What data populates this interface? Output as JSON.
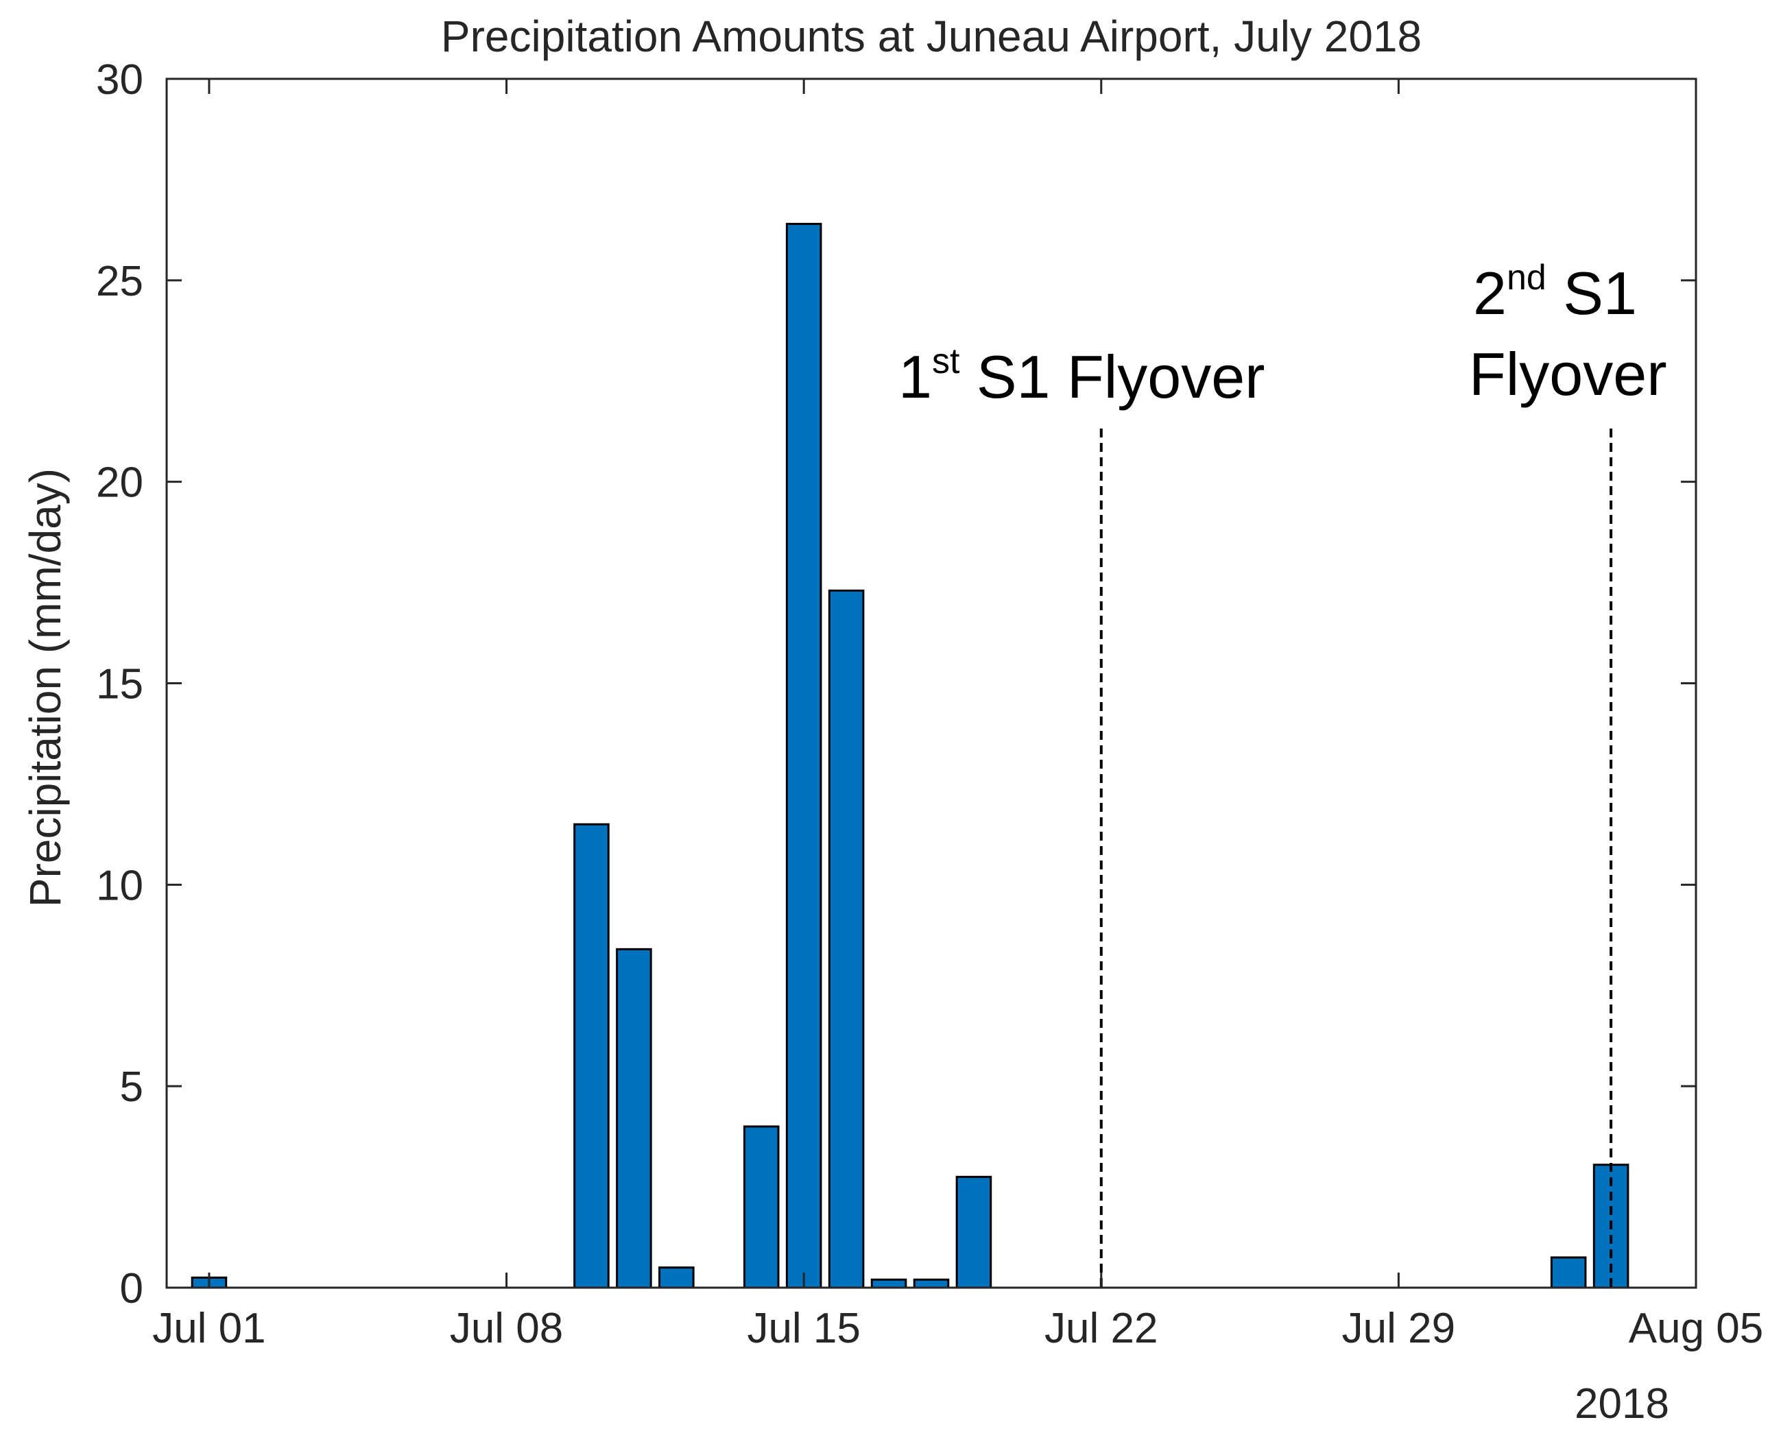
{
  "chart_data": {
    "type": "bar",
    "title": "Precipitation Amounts at Juneau Airport, July 2018",
    "xlabel": "",
    "ylabel": "Precipitation (mm/day)",
    "ylim": [
      0,
      30
    ],
    "yticks": [
      0,
      5,
      10,
      15,
      20,
      25,
      30
    ],
    "xlim": [
      "2018-06-30",
      "2018-08-05"
    ],
    "xticks": [
      "Jul 01",
      "Jul 08",
      "Jul 15",
      "Jul 22",
      "Jul 29",
      "Aug 05"
    ],
    "x_year_label": "2018",
    "grid": false,
    "bar_color": "#0072BD",
    "categories": [
      "2018-07-01",
      "2018-07-10",
      "2018-07-11",
      "2018-07-12",
      "2018-07-14",
      "2018-07-15",
      "2018-07-16",
      "2018-07-17",
      "2018-07-18",
      "2018-07-19",
      "2018-08-02",
      "2018-08-03"
    ],
    "values": [
      0.25,
      11.5,
      8.4,
      0.5,
      4.0,
      26.4,
      17.3,
      0.2,
      0.2,
      2.75,
      0.75,
      3.05
    ],
    "annotations": [
      {
        "date": "2018-07-22",
        "line": "dashed",
        "main": "1",
        "sup": "st",
        "rest": " S1 Flyover"
      },
      {
        "date": "2018-08-03",
        "line": "dashed",
        "main": "2",
        "sup": "nd",
        "rest": " S1",
        "line2": "Flyover"
      }
    ]
  }
}
